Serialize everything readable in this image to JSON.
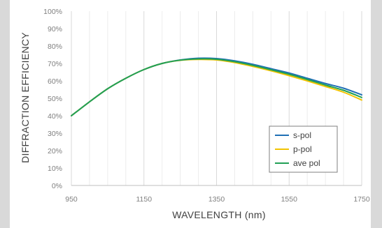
{
  "chart_data": {
    "type": "line",
    "xlabel": "WAVELENGTH (nm)",
    "ylabel": "DIFFRACTION EFFICIENCY",
    "xlim": [
      950,
      1750
    ],
    "ylim": [
      0,
      100
    ],
    "x_ticks": [
      950,
      1150,
      1350,
      1550,
      1750
    ],
    "x_tick_labels": [
      "950",
      "1150",
      "1350",
      "1550",
      "1750"
    ],
    "y_ticks": [
      0,
      10,
      20,
      30,
      40,
      50,
      60,
      70,
      80,
      90,
      100
    ],
    "y_tick_labels": [
      "0%",
      "10%",
      "20%",
      "30%",
      "40%",
      "50%",
      "60%",
      "70%",
      "80%",
      "90%",
      "100%"
    ],
    "grid": "vertical",
    "legend_position": "bottom-right",
    "x": [
      950,
      1000,
      1050,
      1100,
      1150,
      1200,
      1250,
      1300,
      1350,
      1400,
      1450,
      1500,
      1550,
      1600,
      1650,
      1700,
      1750
    ],
    "series": [
      {
        "name": "s-pol",
        "color": "#1f6fb5",
        "values": [
          40,
          48,
          55.5,
          61.5,
          66.5,
          70,
          72,
          73,
          72.8,
          71.5,
          69.5,
          67,
          64.5,
          61.5,
          58.5,
          55.8,
          52
        ]
      },
      {
        "name": "p-pol",
        "color": "#f2c300",
        "values": [
          40,
          48,
          55.5,
          61.5,
          66.5,
          70,
          71.8,
          72.3,
          72,
          70.5,
          68.3,
          65.8,
          63,
          60,
          56.8,
          53.5,
          49
        ]
      },
      {
        "name": "ave pol",
        "color": "#21a055",
        "values": [
          40,
          48,
          55.5,
          61.5,
          66.5,
          70,
          71.9,
          72.6,
          72.4,
          71,
          68.9,
          66.4,
          63.8,
          60.8,
          57.6,
          54.6,
          50.5
        ]
      }
    ]
  }
}
